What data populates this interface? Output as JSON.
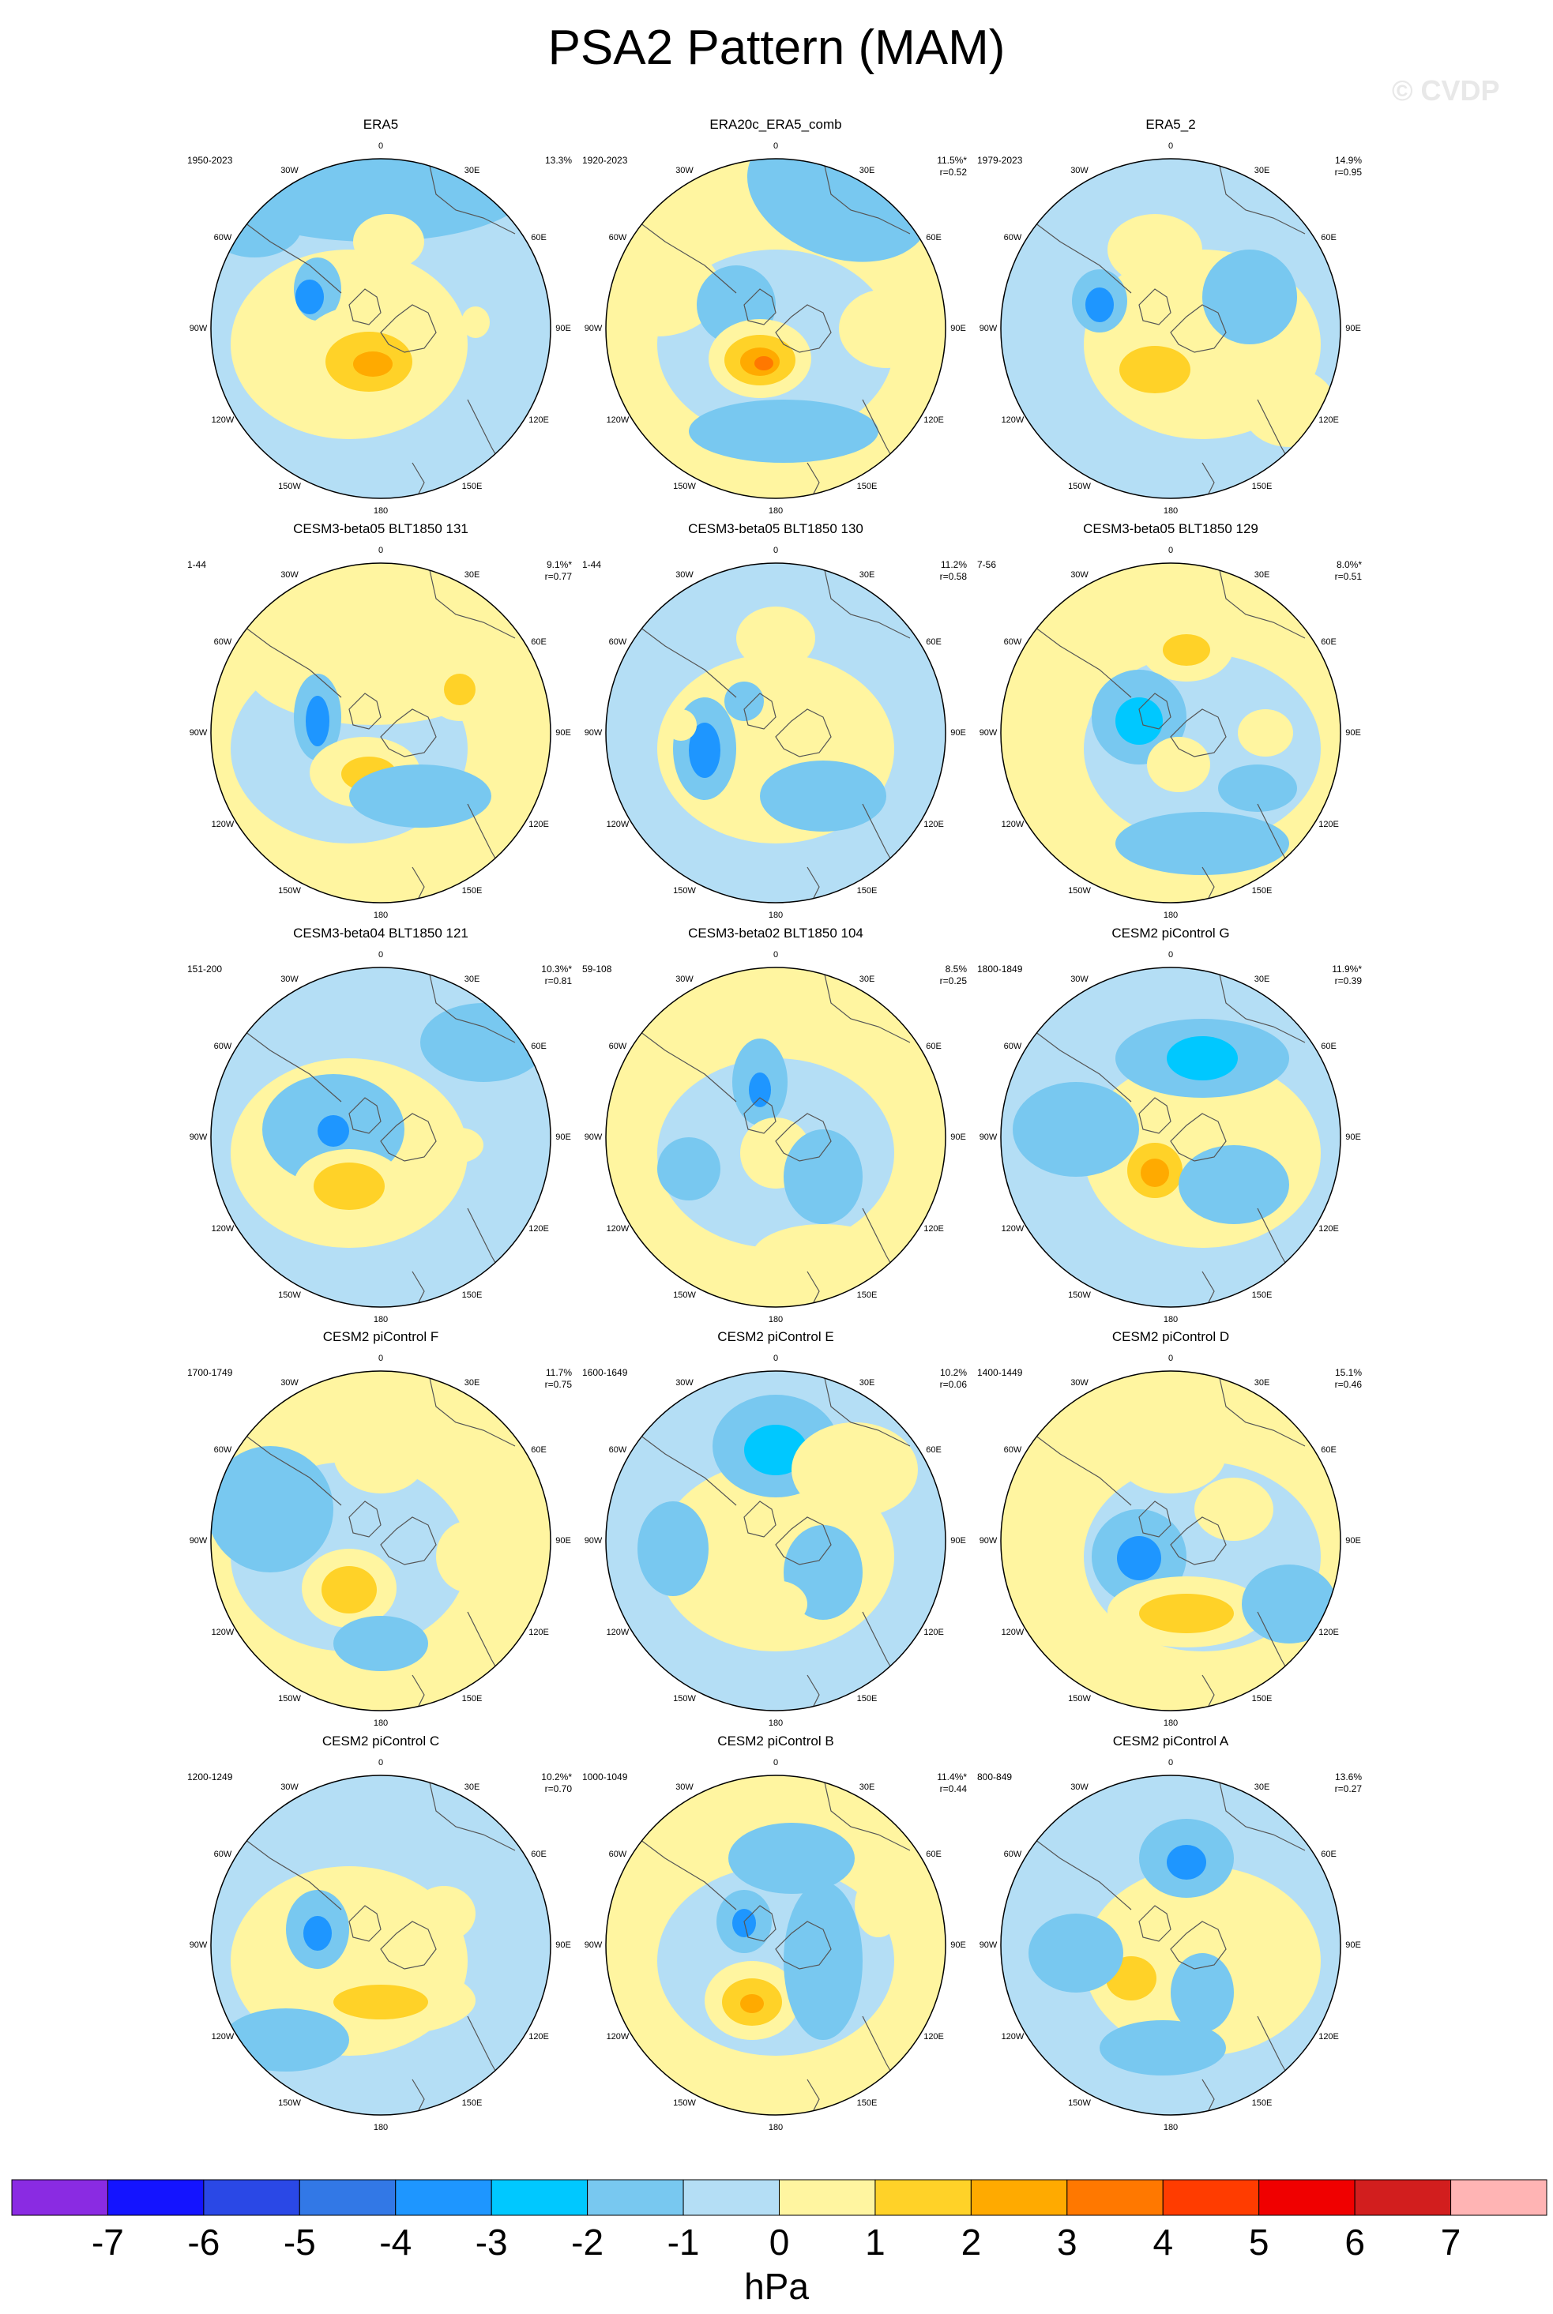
{
  "title": "PSA2 Pattern (MAM)",
  "watermark": "© CVDP",
  "lon_labels": [
    "0",
    "30E",
    "60E",
    "90E",
    "120E",
    "150E",
    "180",
    "150W",
    "120W",
    "90W",
    "60W",
    "30W"
  ],
  "panels": [
    {
      "name": "ERA5",
      "years": "1950-2023",
      "pct": "13.3%",
      "r": ""
    },
    {
      "name": "ERA20c_ERA5_comb",
      "years": "1920-2023",
      "pct": "11.5%*",
      "r": "r=0.52"
    },
    {
      "name": "ERA5_2",
      "years": "1979-2023",
      "pct": "14.9%",
      "r": "r=0.95"
    },
    {
      "name": "CESM3-beta05 BLT1850 131",
      "years": "1-44",
      "pct": "9.1%*",
      "r": "r=0.77"
    },
    {
      "name": "CESM3-beta05 BLT1850 130",
      "years": "1-44",
      "pct": "11.2%",
      "r": "r=0.58"
    },
    {
      "name": "CESM3-beta05 BLT1850 129",
      "years": "7-56",
      "pct": "8.0%*",
      "r": "r=0.51"
    },
    {
      "name": "CESM3-beta04 BLT1850 121",
      "years": "151-200",
      "pct": "10.3%*",
      "r": "r=0.81"
    },
    {
      "name": "CESM3-beta02 BLT1850 104",
      "years": "59-108",
      "pct": "8.5%",
      "r": "r=0.25"
    },
    {
      "name": "CESM2 piControl G",
      "years": "1800-1849",
      "pct": "11.9%*",
      "r": "r=0.39"
    },
    {
      "name": "CESM2 piControl F",
      "years": "1700-1749",
      "pct": "11.7%",
      "r": "r=0.75"
    },
    {
      "name": "CESM2 piControl E",
      "years": "1600-1649",
      "pct": "10.2%",
      "r": "r=0.06"
    },
    {
      "name": "CESM2 piControl D",
      "years": "1400-1449",
      "pct": "15.1%",
      "r": "r=0.46"
    },
    {
      "name": "CESM2 piControl C",
      "years": "1200-1249",
      "pct": "10.2%*",
      "r": "r=0.70"
    },
    {
      "name": "CESM2 piControl B",
      "years": "1000-1049",
      "pct": "11.4%*",
      "r": "r=0.44"
    },
    {
      "name": "CESM2 piControl A",
      "years": "800-849",
      "pct": "13.6%",
      "r": "r=0.27"
    }
  ],
  "colorbar": {
    "unit": "hPa",
    "ticks": [
      "-7",
      "-6",
      "-5",
      "-4",
      "-3",
      "-2",
      "-1",
      "0",
      "1",
      "2",
      "3",
      "4",
      "5",
      "6",
      "7"
    ],
    "colors": [
      "#8a2be2",
      "#1414ff",
      "#2a48e6",
      "#3278e6",
      "#1e96ff",
      "#00c8ff",
      "#78c8f0",
      "#b4def5",
      "#fff5a0",
      "#ffd228",
      "#ffaa00",
      "#ff7800",
      "#ff3c00",
      "#f00000",
      "#d21e1e",
      "#ffb4b4"
    ]
  },
  "chart_data": {
    "type": "heatmap",
    "title": "PSA2 Pattern (MAM)",
    "colorbar_unit": "hPa",
    "colorbar_range": [
      -7,
      7
    ],
    "colorbar_interval": 1,
    "panels": [
      {
        "name": "ERA5",
        "period": "1950-2023",
        "explained_variance": "13.3%",
        "pattern_corr": null
      },
      {
        "name": "ERA20c_ERA5_comb",
        "period": "1920-2023",
        "explained_variance": "11.5%*",
        "pattern_corr": 0.52
      },
      {
        "name": "ERA5_2",
        "period": "1979-2023",
        "explained_variance": "14.9%",
        "pattern_corr": 0.95
      },
      {
        "name": "CESM3-beta05 BLT1850 131",
        "period": "1-44",
        "explained_variance": "9.1%*",
        "pattern_corr": 0.77
      },
      {
        "name": "CESM3-beta05 BLT1850 130",
        "period": "1-44",
        "explained_variance": "11.2%",
        "pattern_corr": 0.58
      },
      {
        "name": "CESM3-beta05 BLT1850 129",
        "period": "7-56",
        "explained_variance": "8.0%*",
        "pattern_corr": 0.51
      },
      {
        "name": "CESM3-beta04 BLT1850 121",
        "period": "151-200",
        "explained_variance": "10.3%*",
        "pattern_corr": 0.81
      },
      {
        "name": "CESM3-beta02 BLT1850 104",
        "period": "59-108",
        "explained_variance": "8.5%",
        "pattern_corr": 0.25
      },
      {
        "name": "CESM2 piControl G",
        "period": "1800-1849",
        "explained_variance": "11.9%*",
        "pattern_corr": 0.39
      },
      {
        "name": "CESM2 piControl F",
        "period": "1700-1749",
        "explained_variance": "11.7%",
        "pattern_corr": 0.75
      },
      {
        "name": "CESM2 piControl E",
        "period": "1600-1649",
        "explained_variance": "10.2%",
        "pattern_corr": 0.06
      },
      {
        "name": "CESM2 piControl D",
        "period": "1400-1449",
        "explained_variance": "15.1%",
        "pattern_corr": 0.46
      },
      {
        "name": "CESM2 piControl C",
        "period": "1200-1249",
        "explained_variance": "10.2%*",
        "pattern_corr": 0.7
      },
      {
        "name": "CESM2 piControl B",
        "period": "1000-1049",
        "explained_variance": "11.4%*",
        "pattern_corr": 0.44
      },
      {
        "name": "CESM2 piControl A",
        "period": "800-849",
        "explained_variance": "13.6%",
        "pattern_corr": 0.27
      }
    ]
  }
}
